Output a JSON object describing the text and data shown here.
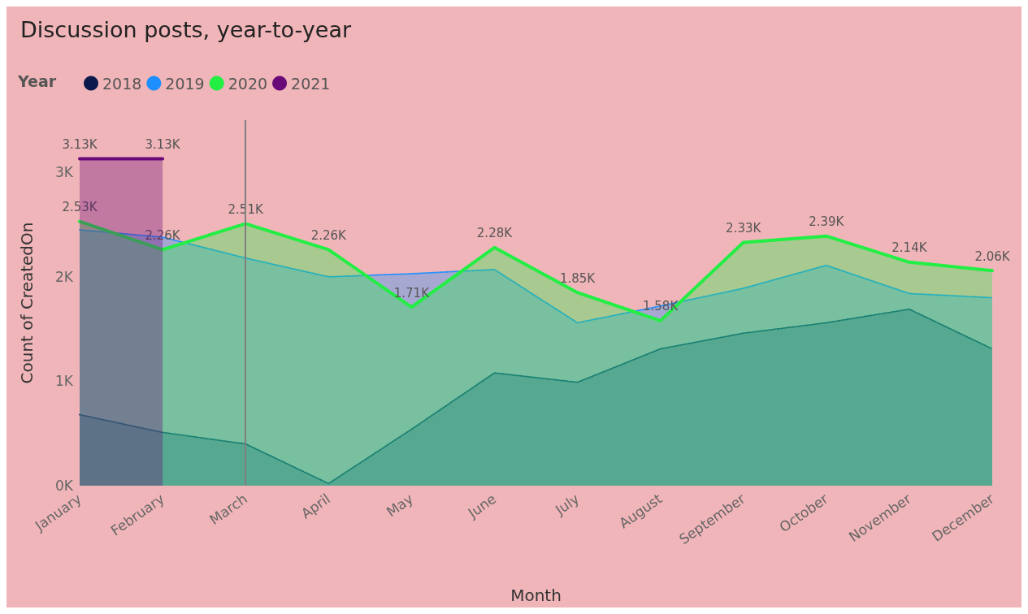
{
  "chart_data": {
    "type": "area",
    "title": "Discussion posts, year-to-year",
    "xlabel": "Month",
    "ylabel": "Count of CreatedOn",
    "legend_title": "Year",
    "legend": "top left",
    "grid": false,
    "marker": "none",
    "categories": [
      "January",
      "February",
      "March",
      "April",
      "May",
      "June",
      "July",
      "August",
      "September",
      "October",
      "November",
      "December"
    ],
    "ylim": [
      0,
      3500
    ],
    "yticks": [
      {
        "value": 0,
        "label": "0K"
      },
      {
        "value": 1000,
        "label": "1K"
      },
      {
        "value": 2000,
        "label": "2K"
      },
      {
        "value": 3000,
        "label": "3K"
      }
    ],
    "series": [
      {
        "name": "2018",
        "color": "#0b1a4a",
        "line_style": "dotted",
        "values": [
          680,
          510,
          400,
          20,
          540,
          1080,
          990,
          1310,
          1460,
          1560,
          1690,
          1310
        ]
      },
      {
        "name": "2019",
        "color": "#1e8fff",
        "line_style": "dotted",
        "values": [
          2450,
          2380,
          2180,
          2000,
          2030,
          2070,
          1560,
          1720,
          1890,
          2110,
          1840,
          1800
        ]
      },
      {
        "name": "2020",
        "color": "#22ee44",
        "line_style": "solid",
        "values": [
          2530,
          2260,
          2510,
          2260,
          1710,
          2280,
          1850,
          1580,
          2330,
          2390,
          2140,
          2060
        ],
        "value_labels": [
          "2.53K",
          "2.26K",
          "2.51K",
          "2.26K",
          "1.71K",
          "2.28K",
          "1.85K",
          "1.58K",
          "2.33K",
          "2.39K",
          "2.14K",
          "2.06K"
        ]
      },
      {
        "name": "2021",
        "color": "#6a0a78",
        "line_style": "solid",
        "values": [
          3130,
          3130,
          null,
          null,
          null,
          null,
          null,
          null,
          null,
          null,
          null,
          null
        ],
        "value_labels": [
          "3.13K",
          "3.13K",
          null,
          null,
          null,
          null,
          null,
          null,
          null,
          null,
          null,
          null
        ]
      }
    ],
    "ref_lines": [
      {
        "axis": "x",
        "value": "March",
        "color": "#808080",
        "line_style": "solid"
      }
    ]
  }
}
